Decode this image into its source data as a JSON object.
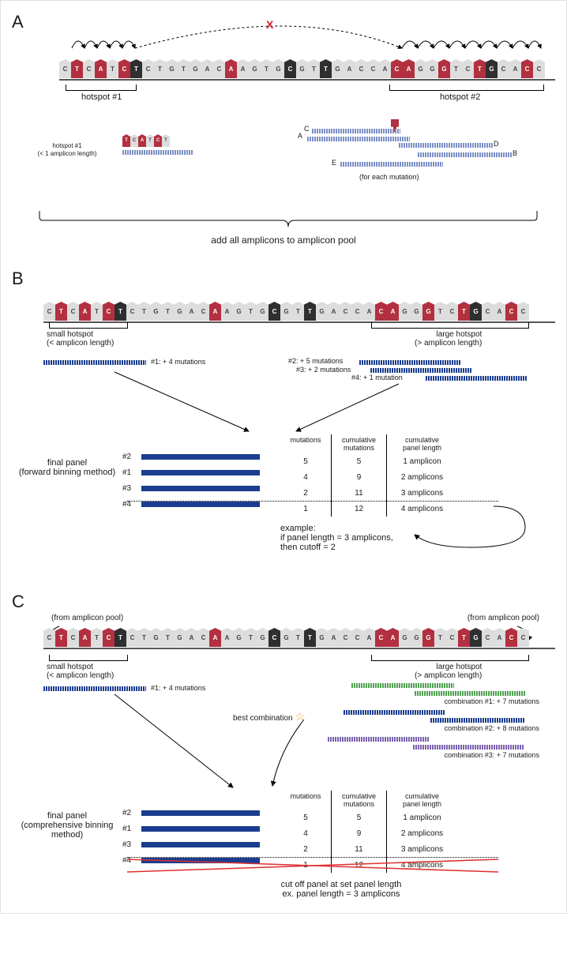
{
  "sequence": {
    "letters": [
      "C",
      "T",
      "C",
      "A",
      "T",
      "C",
      "T",
      "C",
      "T",
      "G",
      "T",
      "G",
      "A",
      "C",
      "A",
      "A",
      "G",
      "T",
      "G",
      "C",
      "G",
      "T",
      "T",
      "G",
      "A",
      "C",
      "C",
      "A",
      "C",
      "A",
      "G",
      "G",
      "G",
      "T",
      "C",
      "T",
      "G",
      "C",
      "A",
      "C",
      "C"
    ],
    "mutation_indices": [
      1,
      3,
      5,
      14,
      28,
      29,
      32,
      35,
      39
    ],
    "dark_indices": [
      6,
      19,
      22,
      36
    ],
    "colors": {
      "neutral_fill": "#dddddd",
      "neutral_text": "#444444",
      "mutation_fill": "#b23040",
      "mutation_text": "#ffffff",
      "dark_fill": "#2f2f2f",
      "dark_text": "#ffffff"
    }
  },
  "panelA": {
    "letter": "A",
    "hotspot1_label": "hotspot #1",
    "hotspot2_label": "hotspot #2",
    "hotspot1_sub": "hotspot #1\n(< 1 amplicon length)",
    "hotspot1_mini_letters": [
      "T",
      "C",
      "A",
      "T",
      "C",
      "T"
    ],
    "hotspot1_mini_mut": [
      0,
      2,
      4
    ],
    "amp_letters": [
      "A",
      "B",
      "C",
      "D",
      "E"
    ],
    "under_label": "(for each mutation)",
    "bottom_label": "add all amplicons to amplicon pool",
    "amp_color": "#7a8fc5",
    "arrow_x_color": "#d02030"
  },
  "panelB": {
    "letter": "B",
    "small_label": "small hotspot\n(< amplicon length)",
    "large_label": "large hotspot\n(> amplicon length)",
    "amp1_label": "#1: + 4 mutations",
    "amp2_label": "#2: + 5 mutations",
    "amp3_label": "#3: + 2 mutations",
    "amp4_label": "#4: + 1 mutation",
    "amp_color": "#1a3d8f",
    "final_label": "final panel\n(forward binning method)",
    "table": {
      "headers": [
        "mutations",
        "cumulative\nmutations",
        "cumulative\npanel length"
      ],
      "rows": [
        {
          "id": "#2",
          "mut": 5,
          "cum": 5,
          "plen": "1 amplicon"
        },
        {
          "id": "#1",
          "mut": 4,
          "cum": 9,
          "plen": "2 amplicons"
        },
        {
          "id": "#3",
          "mut": 2,
          "cum": 11,
          "plen": "3 amplicons"
        },
        {
          "id": "#4",
          "mut": 1,
          "cum": 12,
          "plen": "4 amplicons"
        }
      ]
    },
    "example_text": "example:\nif panel length = 3 amplicons,\nthen cutoff = 2"
  },
  "panelC": {
    "letter": "C",
    "from_pool": "(from amplicon pool)",
    "small_label": "small hotspot\n(< amplicon length)",
    "large_label": "large hotspot\n(> amplicon length)",
    "amp1_label": "#1: + 4 mutations",
    "combo1_label": "combination #1: + 7 mutations",
    "combo2_label": "combination #2: + 8 mutations",
    "combo3_label": "combination #3: + 7 mutations",
    "combo1_color": "#4fa050",
    "combo2_color": "#1a3d8f",
    "combo3_color": "#7a60b0",
    "best_label": "best combination",
    "star_color": "#e8a030",
    "final_label": "final panel\n(comprehensive binning\nmethod)",
    "table": {
      "headers": [
        "mutations",
        "cumulative\nmutations",
        "cumulative\npanel length"
      ],
      "rows": [
        {
          "id": "#2",
          "mut": 5,
          "cum": 5,
          "plen": "1 amplicon"
        },
        {
          "id": "#1",
          "mut": 4,
          "cum": 9,
          "plen": "2 amplicons"
        },
        {
          "id": "#3",
          "mut": 2,
          "cum": 11,
          "plen": "3 amplicons"
        },
        {
          "id": "#4",
          "mut": 1,
          "cum": 12,
          "plen": "4 amplicons"
        }
      ]
    },
    "bottom_text": "cut off panel at set panel length\nex. panel length = 3 amplicons",
    "strike_color": "#e03030"
  }
}
